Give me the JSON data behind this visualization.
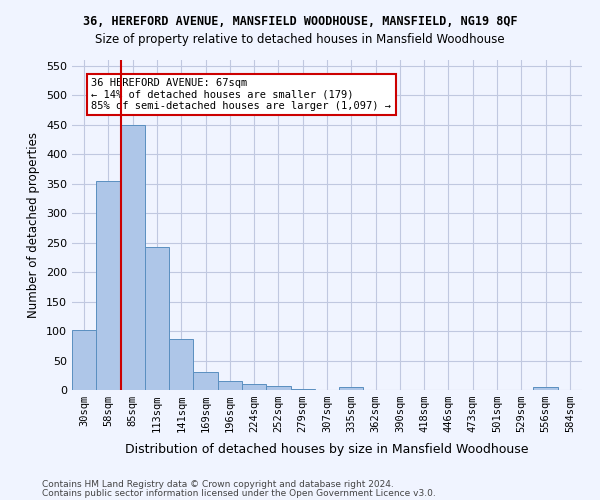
{
  "title1": "36, HEREFORD AVENUE, MANSFIELD WOODHOUSE, MANSFIELD, NG19 8QF",
  "title2": "Size of property relative to detached houses in Mansfield Woodhouse",
  "xlabel": "Distribution of detached houses by size in Mansfield Woodhouse",
  "ylabel": "Number of detached properties",
  "footer1": "Contains HM Land Registry data © Crown copyright and database right 2024.",
  "footer2": "Contains public sector information licensed under the Open Government Licence v3.0.",
  "bar_labels": [
    "30sqm",
    "58sqm",
    "85sqm",
    "113sqm",
    "141sqm",
    "169sqm",
    "196sqm",
    "224sqm",
    "252sqm",
    "279sqm",
    "307sqm",
    "335sqm",
    "362sqm",
    "390sqm",
    "418sqm",
    "446sqm",
    "473sqm",
    "501sqm",
    "529sqm",
    "556sqm",
    "584sqm"
  ],
  "bar_values": [
    102,
    355,
    450,
    243,
    87,
    30,
    15,
    10,
    7,
    2,
    0,
    5,
    0,
    0,
    0,
    0,
    0,
    0,
    0,
    5,
    0
  ],
  "bar_color": "#aec6e8",
  "bar_edge_color": "#5a8fc0",
  "ylim": [
    0,
    560
  ],
  "yticks": [
    0,
    50,
    100,
    150,
    200,
    250,
    300,
    350,
    400,
    450,
    500,
    550
  ],
  "vline_x_idx": 1,
  "vline_color": "#cc0000",
  "annotation_text": "36 HEREFORD AVENUE: 67sqm\n← 14% of detached houses are smaller (179)\n85% of semi-detached houses are larger (1,097) →",
  "annotation_box_color": "#ffffff",
  "annotation_box_edgecolor": "#cc0000",
  "bg_color": "#f0f4ff",
  "grid_color": "#c0c8e0"
}
